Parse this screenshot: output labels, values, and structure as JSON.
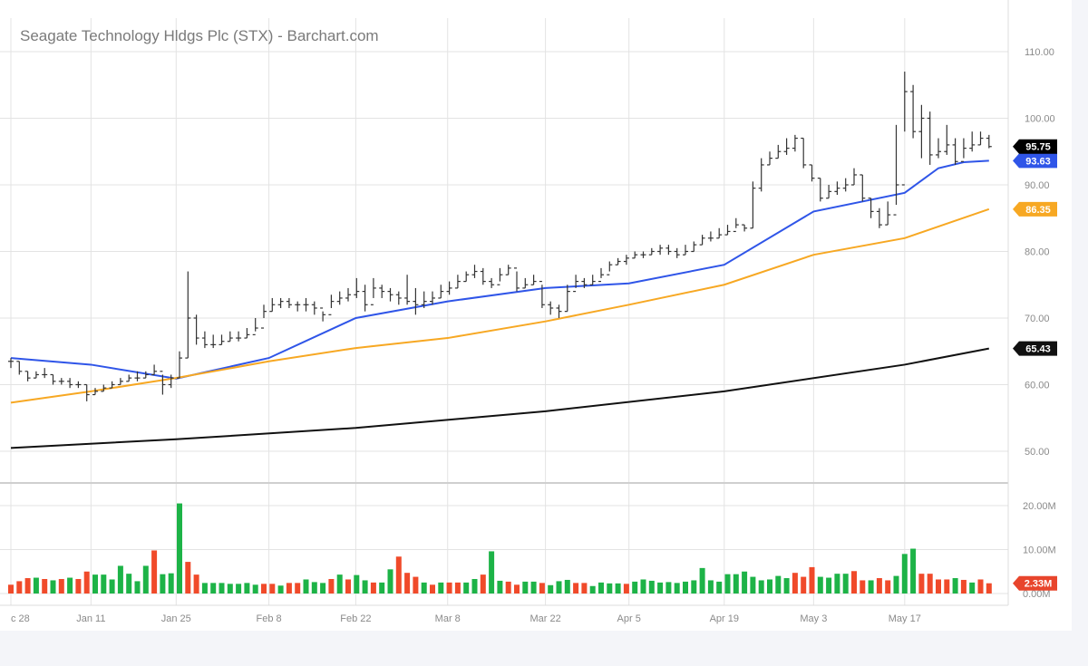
{
  "chart_data": {
    "type": "ohlc",
    "title": "Seagate Technology Hldgs Plc (STX) - Barchart.com",
    "price_axis": {
      "ticks": [
        "110.00",
        "100.00",
        "90.00",
        "80.00",
        "70.00",
        "60.00",
        "50.00"
      ],
      "values": [
        110,
        100,
        90,
        80,
        70,
        60,
        50
      ],
      "range": [
        45.5,
        112
      ]
    },
    "volume_axis": {
      "ticks": [
        "20.00M",
        "10.00M",
        "0.00M"
      ],
      "values": [
        20,
        10,
        0
      ],
      "unit": "M"
    },
    "grid": true,
    "x_ticks": [
      {
        "label": "c 28",
        "bar": 0
      },
      {
        "label": "Jan 11",
        "bar": 9.5
      },
      {
        "label": "Jan 25",
        "bar": 19.6
      },
      {
        "label": "Feb 8",
        "bar": 30.6
      },
      {
        "label": "Feb 22",
        "bar": 40.9
      },
      {
        "label": "Mar 8",
        "bar": 51.8
      },
      {
        "label": "Mar 22",
        "bar": 63.4
      },
      {
        "label": "Apr 5",
        "bar": 73.3
      },
      {
        "label": "Apr 19",
        "bar": 84.6
      },
      {
        "label": "May 3",
        "bar": 95.2
      },
      {
        "label": "May 17",
        "bar": 106
      }
    ],
    "bars_high_low_close": [
      [
        64,
        62.5,
        63.5
      ],
      [
        63.5,
        61.5,
        62
      ],
      [
        62,
        60.5,
        61
      ],
      [
        62,
        61,
        61.5
      ],
      [
        62.5,
        61,
        61.5
      ],
      [
        61.5,
        60,
        60.5
      ],
      [
        61,
        60,
        60.5
      ],
      [
        61,
        59.5,
        60
      ],
      [
        60.5,
        59.5,
        60
      ],
      [
        60,
        57.5,
        58.5
      ],
      [
        59.5,
        58.5,
        59
      ],
      [
        60,
        59,
        59.5
      ],
      [
        60.5,
        59.5,
        60
      ],
      [
        61,
        60,
        60.5
      ],
      [
        61.5,
        60.5,
        61
      ],
      [
        62,
        60.5,
        61
      ],
      [
        62,
        61,
        61.5
      ],
      [
        63,
        61.5,
        62
      ],
      [
        61.5,
        58.5,
        60
      ],
      [
        61.5,
        59.5,
        61
      ],
      [
        65,
        61,
        64
      ],
      [
        77,
        64,
        70
      ],
      [
        70.5,
        66,
        67
      ],
      [
        68,
        65.5,
        66
      ],
      [
        67.5,
        65.5,
        66
      ],
      [
        67.5,
        66,
        66.5
      ],
      [
        68,
        66.5,
        67
      ],
      [
        68,
        66.5,
        67
      ],
      [
        68.5,
        67,
        67.5
      ],
      [
        70,
        68,
        68.5
      ],
      [
        72,
        70,
        71
      ],
      [
        73,
        71,
        72
      ],
      [
        73,
        71.5,
        72.5
      ],
      [
        73,
        71.5,
        72
      ],
      [
        72.5,
        71,
        72
      ],
      [
        73,
        71,
        72
      ],
      [
        72.5,
        70.5,
        71.5
      ],
      [
        71,
        69.5,
        70.5
      ],
      [
        73.5,
        71.5,
        72.5
      ],
      [
        74,
        72,
        73
      ],
      [
        74.5,
        72.5,
        73.5
      ],
      [
        76,
        73,
        74
      ],
      [
        75,
        71,
        72
      ],
      [
        76,
        73,
        74.5
      ],
      [
        75,
        73,
        74
      ],
      [
        74.5,
        72.5,
        73.5
      ],
      [
        74,
        72,
        73
      ],
      [
        76.5,
        72,
        72.5
      ],
      [
        74.5,
        70.5,
        72
      ],
      [
        74,
        71.5,
        72.5
      ],
      [
        74,
        72,
        73
      ],
      [
        75,
        73,
        74
      ],
      [
        75.5,
        73.5,
        74.5
      ],
      [
        76.5,
        74.5,
        75.5
      ],
      [
        77,
        75.5,
        76.5
      ],
      [
        78,
        76,
        77
      ],
      [
        77.5,
        75,
        75.5
      ],
      [
        76,
        74.5,
        75
      ],
      [
        77.5,
        75.5,
        76.5
      ],
      [
        78,
        76.5,
        77.5
      ],
      [
        77,
        74,
        74.5
      ],
      [
        76,
        74.5,
        75
      ],
      [
        76.5,
        75,
        75.5
      ],
      [
        75,
        71.5,
        72
      ],
      [
        72.5,
        70.5,
        71.5
      ],
      [
        72,
        70,
        71
      ],
      [
        75,
        71,
        74
      ],
      [
        76.5,
        74.5,
        75.5
      ],
      [
        76,
        74.5,
        75
      ],
      [
        76.5,
        75,
        75.5
      ],
      [
        77.5,
        76,
        76.5
      ],
      [
        78.5,
        77,
        78
      ],
      [
        79,
        78,
        78.5
      ],
      [
        79.5,
        78,
        79
      ],
      [
        80,
        79,
        79.5
      ],
      [
        80,
        79,
        79.5
      ],
      [
        80.5,
        79.5,
        80
      ],
      [
        81,
        79.5,
        80.5
      ],
      [
        81,
        79.5,
        80
      ],
      [
        80.5,
        79,
        79.5
      ],
      [
        81,
        79.5,
        80
      ],
      [
        81.5,
        80,
        81
      ],
      [
        82.5,
        81,
        82
      ],
      [
        83,
        81.5,
        82
      ],
      [
        83.5,
        82,
        82.5
      ],
      [
        84,
        82.5,
        83
      ],
      [
        85,
        83.5,
        84
      ],
      [
        84,
        83,
        83.5
      ],
      [
        90.5,
        83.5,
        89.5
      ],
      [
        94,
        89,
        93
      ],
      [
        95,
        93,
        94
      ],
      [
        96,
        94,
        95
      ],
      [
        97,
        94.5,
        95.5
      ],
      [
        97.5,
        95,
        97
      ],
      [
        97,
        92.5,
        93
      ],
      [
        93,
        90.5,
        91
      ],
      [
        91,
        87.5,
        88
      ],
      [
        90,
        88,
        89
      ],
      [
        90.5,
        88.5,
        89.5
      ],
      [
        91,
        89,
        90
      ],
      [
        92.5,
        90,
        91.5
      ],
      [
        91.5,
        87.5,
        88
      ],
      [
        88,
        85,
        86
      ],
      [
        86.5,
        83.5,
        84
      ],
      [
        87.5,
        84,
        85.5
      ],
      [
        99,
        87,
        90
      ],
      [
        107,
        98,
        104
      ],
      [
        105,
        97,
        98
      ],
      [
        102,
        94,
        100
      ],
      [
        101,
        93,
        94.5
      ],
      [
        97,
        94,
        95
      ],
      [
        99,
        94.5,
        96
      ],
      [
        97,
        93,
        93.5
      ],
      [
        97,
        94,
        95.5
      ],
      [
        98,
        95,
        96
      ],
      [
        98,
        96,
        97
      ],
      [
        97.5,
        95.5,
        95.75
      ]
    ],
    "volume_millions": [
      [
        2,
        "down"
      ],
      [
        2.8,
        "down"
      ],
      [
        3.5,
        "down"
      ],
      [
        3.6,
        "up"
      ],
      [
        3.3,
        "down"
      ],
      [
        3,
        "up"
      ],
      [
        3.3,
        "down"
      ],
      [
        3.6,
        "up"
      ],
      [
        3.3,
        "down"
      ],
      [
        5,
        "down"
      ],
      [
        4.3,
        "up"
      ],
      [
        4.3,
        "up"
      ],
      [
        3.2,
        "up"
      ],
      [
        6.3,
        "up"
      ],
      [
        4.5,
        "up"
      ],
      [
        2.8,
        "up"
      ],
      [
        6.3,
        "up"
      ],
      [
        9.8,
        "down"
      ],
      [
        4.4,
        "up"
      ],
      [
        4.6,
        "up"
      ],
      [
        20.5,
        "up"
      ],
      [
        7.2,
        "down"
      ],
      [
        4.3,
        "down"
      ],
      [
        2.4,
        "up"
      ],
      [
        2.4,
        "up"
      ],
      [
        2.4,
        "up"
      ],
      [
        2.2,
        "up"
      ],
      [
        2.2,
        "up"
      ],
      [
        2.4,
        "up"
      ],
      [
        2,
        "up"
      ],
      [
        2.2,
        "down"
      ],
      [
        2.2,
        "down"
      ],
      [
        1.8,
        "up"
      ],
      [
        2.4,
        "down"
      ],
      [
        2.4,
        "down"
      ],
      [
        3.2,
        "up"
      ],
      [
        2.6,
        "up"
      ],
      [
        2.4,
        "up"
      ],
      [
        3.3,
        "down"
      ],
      [
        4.3,
        "up"
      ],
      [
        3.2,
        "down"
      ],
      [
        4.2,
        "up"
      ],
      [
        3,
        "up"
      ],
      [
        2.5,
        "down"
      ],
      [
        2.5,
        "up"
      ],
      [
        5.5,
        "up"
      ],
      [
        8.4,
        "down"
      ],
      [
        4.7,
        "down"
      ],
      [
        3.8,
        "down"
      ],
      [
        2.5,
        "up"
      ],
      [
        2,
        "down"
      ],
      [
        2.5,
        "up"
      ],
      [
        2.5,
        "down"
      ],
      [
        2.5,
        "down"
      ],
      [
        2.5,
        "up"
      ],
      [
        3.3,
        "up"
      ],
      [
        4.3,
        "down"
      ],
      [
        9.6,
        "up"
      ],
      [
        2.9,
        "up"
      ],
      [
        2.7,
        "down"
      ],
      [
        2,
        "down"
      ],
      [
        2.7,
        "up"
      ],
      [
        2.7,
        "up"
      ],
      [
        2.4,
        "down"
      ],
      [
        1.9,
        "up"
      ],
      [
        2.8,
        "up"
      ],
      [
        3.1,
        "up"
      ],
      [
        2.4,
        "down"
      ],
      [
        2.4,
        "down"
      ],
      [
        1.7,
        "up"
      ],
      [
        2.5,
        "up"
      ],
      [
        2.3,
        "up"
      ],
      [
        2.3,
        "up"
      ],
      [
        2.2,
        "down"
      ],
      [
        2.7,
        "up"
      ],
      [
        3.2,
        "up"
      ],
      [
        2.9,
        "up"
      ],
      [
        2.5,
        "up"
      ],
      [
        2.6,
        "up"
      ],
      [
        2.4,
        "up"
      ],
      [
        2.7,
        "up"
      ],
      [
        3,
        "up"
      ],
      [
        5.8,
        "up"
      ],
      [
        3,
        "up"
      ],
      [
        2.7,
        "up"
      ],
      [
        4.4,
        "up"
      ],
      [
        4.4,
        "up"
      ],
      [
        5,
        "up"
      ],
      [
        3.8,
        "up"
      ],
      [
        3,
        "up"
      ],
      [
        3.2,
        "up"
      ],
      [
        4,
        "up"
      ],
      [
        3.5,
        "up"
      ],
      [
        4.7,
        "down"
      ],
      [
        3.8,
        "down"
      ],
      [
        6,
        "down"
      ],
      [
        3.8,
        "up"
      ],
      [
        3.6,
        "up"
      ],
      [
        4.5,
        "up"
      ],
      [
        4.5,
        "up"
      ],
      [
        5.1,
        "down"
      ],
      [
        3,
        "down"
      ],
      [
        3,
        "up"
      ],
      [
        3.5,
        "down"
      ],
      [
        3,
        "down"
      ],
      [
        4,
        "up"
      ],
      [
        9,
        "up"
      ],
      [
        10.2,
        "up"
      ],
      [
        4.5,
        "down"
      ],
      [
        4.5,
        "down"
      ],
      [
        3.2,
        "down"
      ],
      [
        3.2,
        "down"
      ],
      [
        3.5,
        "up"
      ],
      [
        3.1,
        "down"
      ],
      [
        2.5,
        "up"
      ],
      [
        3.2,
        "down"
      ],
      [
        2.33,
        "down"
      ]
    ],
    "moving_averages": [
      {
        "color": "#2f55e8",
        "last_label": "93.63",
        "points": [
          [
            0,
            64
          ],
          [
            9.5,
            63
          ],
          [
            19.6,
            60.9
          ],
          [
            30.6,
            64
          ],
          [
            40.9,
            70
          ],
          [
            51.8,
            72.5
          ],
          [
            63.4,
            74.5
          ],
          [
            73.3,
            75.2
          ],
          [
            84.6,
            78
          ],
          [
            95.2,
            86
          ],
          [
            106,
            88.8
          ],
          [
            110,
            92.5
          ],
          [
            113,
            93.4
          ],
          [
            116,
            93.63
          ]
        ]
      },
      {
        "color": "#f7a823",
        "last_label": "86.35",
        "points": [
          [
            0,
            57.3
          ],
          [
            9.5,
            59
          ],
          [
            19.6,
            61
          ],
          [
            30.6,
            63.5
          ],
          [
            40.9,
            65.5
          ],
          [
            51.8,
            67
          ],
          [
            63.4,
            69.5
          ],
          [
            73.3,
            72
          ],
          [
            84.6,
            75
          ],
          [
            95.2,
            79.5
          ],
          [
            106,
            82
          ],
          [
            116,
            86.35
          ]
        ]
      },
      {
        "color": "#111111",
        "last_label": "65.43",
        "points": [
          [
            0,
            50.5
          ],
          [
            19.6,
            51.8
          ],
          [
            40.9,
            53.5
          ],
          [
            63.4,
            56
          ],
          [
            84.6,
            59
          ],
          [
            106,
            63
          ],
          [
            116,
            65.43
          ]
        ]
      }
    ],
    "last_price": {
      "label": "95.75",
      "color": "#000000"
    },
    "last_volume": {
      "label": "2.33M",
      "color": "#e8452c"
    },
    "colors": {
      "up": "#1db347",
      "down": "#f04a2a",
      "bars": "#333333",
      "grid": "#e3e3e3"
    }
  }
}
